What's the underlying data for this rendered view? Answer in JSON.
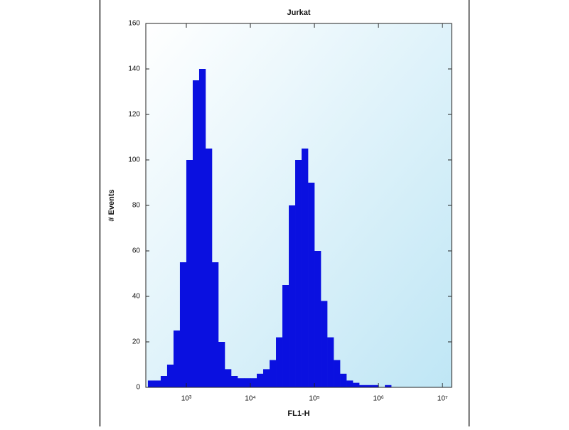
{
  "chart_data": {
    "type": "histogram",
    "title": "Jurkat",
    "x_label": "FL1-H",
    "y_label": "# Events",
    "x_scale": "log",
    "color": "#0a10e0",
    "bins": [
      251,
      316,
      398,
      501,
      631,
      794,
      1000,
      1259,
      1585,
      1995,
      2512,
      3162,
      3981,
      5012,
      6310,
      7943,
      10000,
      12589,
      15849,
      19953,
      25119,
      31623,
      39811,
      50119,
      63096,
      79433,
      100000,
      125893,
      158489,
      199526,
      251189,
      316228,
      398107,
      501187,
      630957,
      794328,
      1000000,
      1258925,
      1584893,
      1995262,
      2511886,
      3162278,
      3981072,
      5011872,
      6309573,
      7943282,
      10000000,
      12589254
    ],
    "values": [
      3,
      3,
      5,
      10,
      25,
      55,
      100,
      135,
      140,
      105,
      55,
      20,
      8,
      5,
      4,
      4,
      4,
      6,
      8,
      12,
      22,
      45,
      80,
      100,
      105,
      90,
      60,
      38,
      22,
      12,
      6,
      3,
      2,
      1,
      1,
      1,
      0,
      1,
      0,
      0,
      0,
      0,
      0,
      0,
      0,
      0,
      0
    ],
    "xlim": [
      233,
      13900000
    ],
    "xticks": [
      {
        "value": 1000,
        "label": "10³"
      },
      {
        "value": 10000,
        "label": "10⁴"
      },
      {
        "value": 100000,
        "label": "10⁵"
      },
      {
        "value": 1000000,
        "label": "10⁶"
      },
      {
        "value": 10000000,
        "label": "10⁷"
      }
    ],
    "ylim": [
      0,
      160
    ],
    "yticks": [
      0,
      20,
      40,
      60,
      80,
      100,
      120,
      140,
      160
    ]
  }
}
